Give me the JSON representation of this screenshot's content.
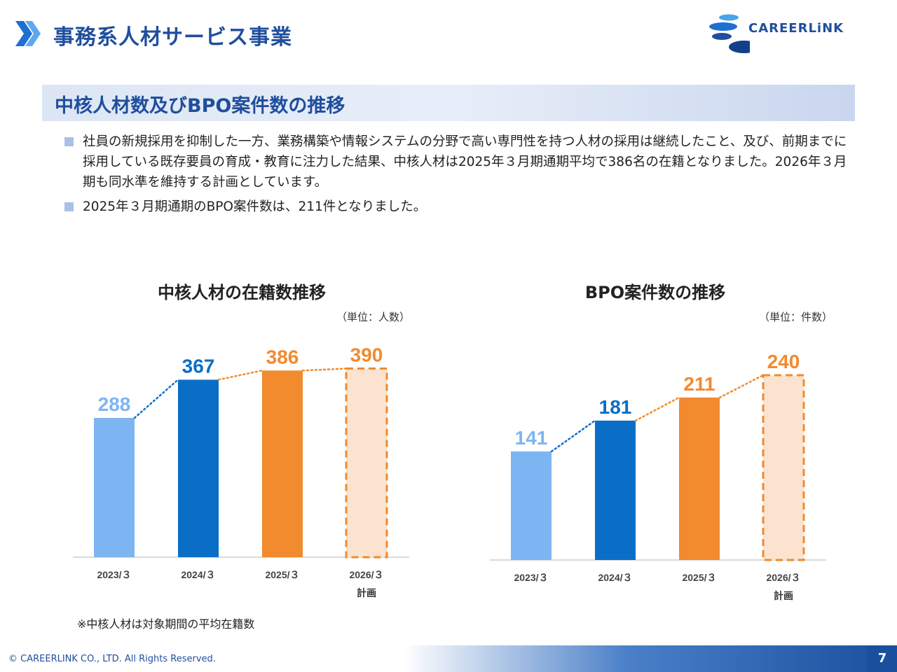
{
  "header": {
    "title": "事務系人材サービス事業",
    "logo_text": "CAREERLiNK",
    "colors": {
      "primary": "#1f4e9c"
    }
  },
  "section": {
    "title": "中核人材数及びBPO案件数の推移"
  },
  "bullets": [
    "社員の新規採用を抑制した一方、業務構築や情報システムの分野で高い専門性を持つ人材の採用は継続したこと、及び、前期までに採用している既存要員の育成・教育に注力した結果、中核人材は2025年３月期通期平均で386名の在籍となりました。2026年３月期も同水準を維持する計画としています。",
    "2025年３月期通期のBPO案件数は、211件となりました。"
  ],
  "note": "※中核人材は対象期間の平均在籍数",
  "footer": {
    "copyright": "© CAREERLINK CO., LTD. All Rights Reserved.",
    "page": "7"
  },
  "chart_data": [
    {
      "type": "bar",
      "title": "中核人材の在籍数推移",
      "unit": "（単位：人数）",
      "categories": [
        "2023/３",
        "2024/３",
        "2025/３",
        "2026/３"
      ],
      "sublabels": [
        "",
        "",
        "",
        "計画"
      ],
      "values": [
        288,
        367,
        386,
        390
      ],
      "colors": [
        "#7db5f2",
        "#0a6ec6",
        "#f28a2e",
        "#fbe3cf"
      ],
      "label_colors": [
        "#7db5f2",
        "#0a6ec6",
        "#f28a2e",
        "#f28a2e"
      ],
      "plan_index": 3,
      "ylim": [
        0,
        440
      ]
    },
    {
      "type": "bar",
      "title": "BPO案件数の推移",
      "unit": "（単位：件数）",
      "categories": [
        "2023/３",
        "2024/３",
        "2025/３",
        "2026/３"
      ],
      "sublabels": [
        "",
        "",
        "",
        "計画"
      ],
      "values": [
        141,
        181,
        211,
        240
      ],
      "colors": [
        "#7db5f2",
        "#0a6ec6",
        "#f28a2e",
        "#fbe3cf"
      ],
      "label_colors": [
        "#7db5f2",
        "#0a6ec6",
        "#f28a2e",
        "#f28a2e"
      ],
      "plan_index": 3,
      "ylim": [
        0,
        280
      ]
    }
  ]
}
